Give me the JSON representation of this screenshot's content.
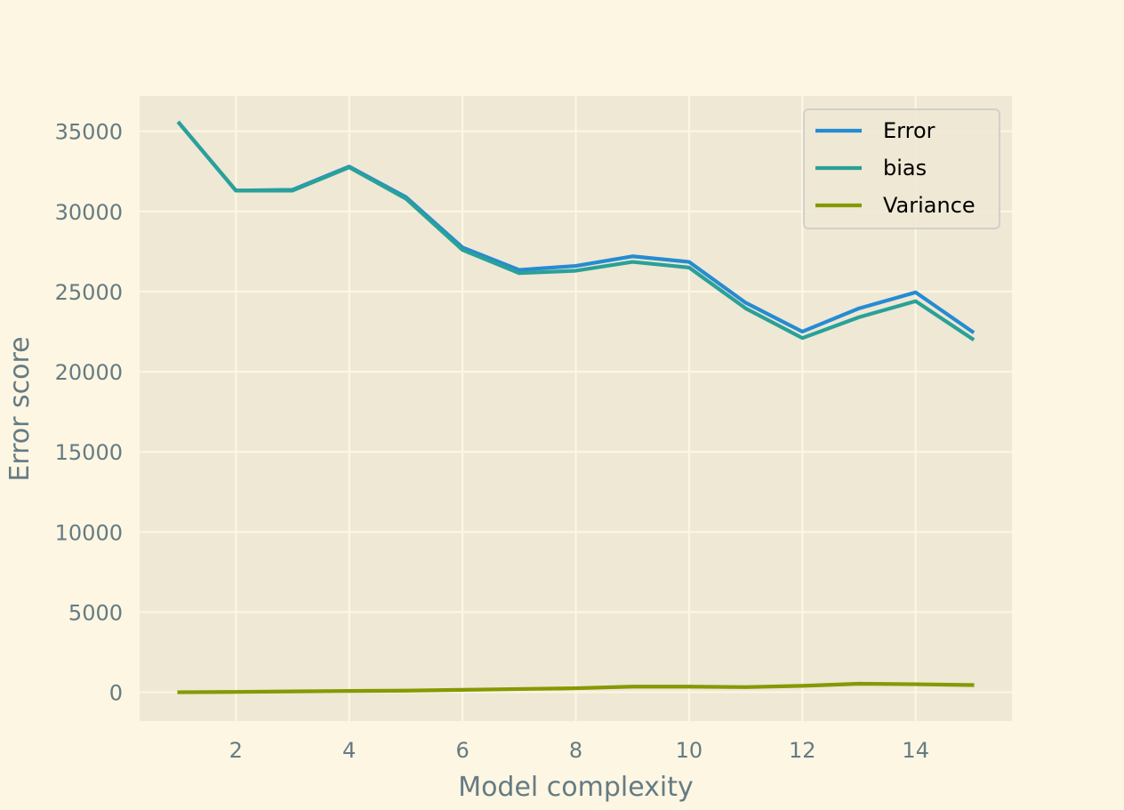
{
  "chart_data": {
    "type": "line",
    "title": "",
    "xlabel": "Model complexity",
    "ylabel": "Error score",
    "xlim": [
      0.3,
      15.7
    ],
    "ylim": [
      -1800,
      37200
    ],
    "x_ticks": [
      2,
      4,
      6,
      8,
      10,
      12,
      14
    ],
    "y_ticks": [
      0,
      5000,
      10000,
      15000,
      20000,
      25000,
      30000,
      35000
    ],
    "grid": true,
    "legend_position": "top-right",
    "x": [
      1,
      2,
      3,
      4,
      5,
      6,
      7,
      8,
      9,
      10,
      11,
      12,
      13,
      14,
      15
    ],
    "series": [
      {
        "name": "Error",
        "color": "#268bd2",
        "values": [
          35500,
          31300,
          31350,
          32800,
          30900,
          27750,
          26350,
          26600,
          27200,
          26850,
          24300,
          22500,
          23950,
          24950,
          22500
        ]
      },
      {
        "name": "bias",
        "color": "#2aa198",
        "values": [
          35500,
          31300,
          31300,
          32750,
          30800,
          27600,
          26150,
          26300,
          26850,
          26500,
          23950,
          22100,
          23400,
          24400,
          22050
        ]
      },
      {
        "name": "Variance",
        "color": "#859900",
        "values": [
          0,
          20,
          50,
          80,
          100,
          150,
          200,
          250,
          350,
          350,
          320,
          400,
          530,
          500,
          450
        ]
      }
    ]
  }
}
